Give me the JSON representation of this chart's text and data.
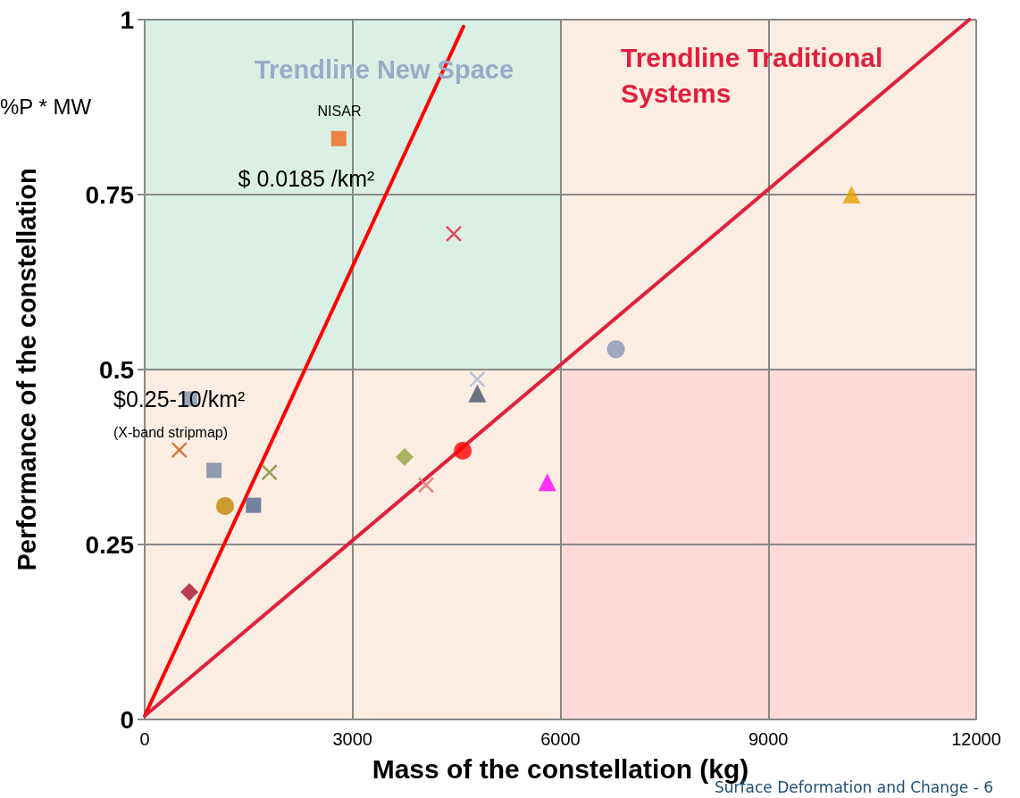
{
  "chart_data": {
    "type": "scatter",
    "xlabel": "Mass of the constellation (kg)",
    "ylabel": "Performance of the constellation",
    "xlim": [
      0,
      12000
    ],
    "xticks": [
      0,
      3000,
      6000,
      9000,
      12000
    ],
    "ylim": [
      0,
      1
    ],
    "yticks": [
      0,
      0.25,
      0.5,
      0.75,
      1
    ],
    "grid": true,
    "series": [
      {
        "type": "area",
        "marker": "none",
        "color": "#daf0e4",
        "x": [
          0,
          6000
        ],
        "values": [
          1,
          1
        ]
      },
      {
        "type": "area",
        "marker": "none",
        "color": "#fcede2",
        "x": [
          0,
          6000
        ],
        "values": [
          0.5,
          0.5
        ]
      },
      {
        "type": "area",
        "marker": "none",
        "color": "#fdd9d9",
        "x": [
          6000,
          12000
        ],
        "values": [
          0.5,
          0.5
        ]
      },
      {
        "type": "line",
        "marker": "none",
        "color": "#ff0000",
        "x": [
          0,
          4600
        ],
        "values": [
          0.005,
          0.99
        ]
      },
      {
        "type": "line",
        "marker": "none",
        "color": "#e0203c",
        "x": [
          0,
          11900
        ],
        "values": [
          0.005,
          1
        ]
      },
      {
        "marker": "square",
        "color": "#f0661e",
        "x": [
          2800
        ],
        "values": [
          0.83
        ]
      },
      {
        "marker": "cross",
        "color": "#e0203c",
        "x": [
          4460
        ],
        "values": [
          0.694
        ]
      },
      {
        "marker": "triangle",
        "color": "#e8a000",
        "x": [
          10200
        ],
        "values": [
          0.75
        ]
      },
      {
        "marker": "circle",
        "color": "#8495b5",
        "x": [
          6800
        ],
        "values": [
          0.529
        ]
      },
      {
        "marker": "cross",
        "color": "#a8b8d8",
        "x": [
          4800
        ],
        "values": [
          0.486
        ]
      },
      {
        "marker": "triangle",
        "color": "#44546a",
        "x": [
          4800
        ],
        "values": [
          0.466
        ]
      },
      {
        "marker": "square",
        "color": "#7f93b0",
        "x": [
          650
        ],
        "values": [
          0.458
        ]
      },
      {
        "marker": "cross",
        "color": "#d05a14",
        "x": [
          500
        ],
        "values": [
          0.385
        ]
      },
      {
        "marker": "square",
        "color": "#7384a0",
        "x": [
          1000
        ],
        "values": [
          0.356
        ]
      },
      {
        "marker": "cross",
        "color": "#7a8c3c",
        "x": [
          1800
        ],
        "values": [
          0.353
        ]
      },
      {
        "marker": "circle",
        "color": "#c08400",
        "x": [
          1160
        ],
        "values": [
          0.305
        ]
      },
      {
        "marker": "square",
        "color": "#4f6690",
        "x": [
          1570
        ],
        "values": [
          0.306
        ]
      },
      {
        "marker": "diamond",
        "color": "#94a444",
        "x": [
          3750
        ],
        "values": [
          0.375
        ]
      },
      {
        "marker": "circle",
        "color": "#ff0000",
        "x": [
          4590
        ],
        "values": [
          0.384
        ]
      },
      {
        "marker": "cross",
        "color": "#e86870",
        "x": [
          4060
        ],
        "values": [
          0.335
        ]
      },
      {
        "marker": "triangle",
        "color": "#ff00ff",
        "x": [
          5810
        ],
        "values": [
          0.339
        ]
      },
      {
        "marker": "diamond",
        "color": "#a8102a",
        "x": [
          645
        ],
        "values": [
          0.182
        ]
      }
    ],
    "annotations": [
      "%P * MW",
      "Surface Deformation and Change - 6",
      "NISAR",
      "Trendline New Space",
      "Trendline Traditional Systems",
      "$ 0.0185 /km²",
      "$0.25-10/km²",
      "(X-band stripmap)"
    ]
  }
}
